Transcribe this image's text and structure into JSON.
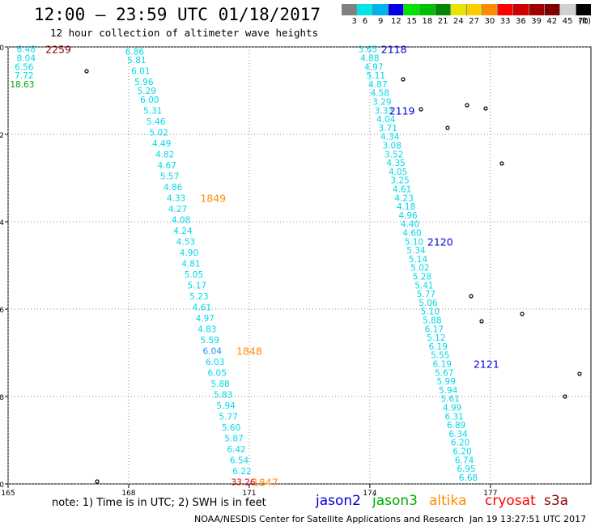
{
  "header": {
    "title": "12:00 — 23:59 UTC 01/18/2017",
    "subtitle": "12 hour collection of altimeter wave heights"
  },
  "legend": {
    "unit": "(ft)",
    "bins": [
      {
        "label": "3",
        "color": "#808080"
      },
      {
        "label": "6",
        "color": "#00e5e5"
      },
      {
        "label": "9",
        "color": "#00b2ee"
      },
      {
        "label": "12",
        "color": "#0000e5"
      },
      {
        "label": "15",
        "color": "#00e500"
      },
      {
        "label": "18",
        "color": "#00c000"
      },
      {
        "label": "21",
        "color": "#008800"
      },
      {
        "label": "24",
        "color": "#e5e500"
      },
      {
        "label": "27",
        "color": "#ffcc00"
      },
      {
        "label": "30",
        "color": "#ff8c00"
      },
      {
        "label": "33",
        "color": "#ff0000"
      },
      {
        "label": "36",
        "color": "#d00000"
      },
      {
        "label": "39",
        "color": "#a00000"
      },
      {
        "label": "42",
        "color": "#800000"
      },
      {
        "label": "45",
        "color": "#d0d0d0"
      },
      {
        "label": "70",
        "color": "#000000"
      }
    ]
  },
  "note": "note: 1) Time is in UTC; 2) SWH is in feet",
  "missions": [
    {
      "name": "jason2",
      "color": "#0000dd"
    },
    {
      "name": "jason3",
      "color": "#00aa00"
    },
    {
      "name": "altika",
      "color": "#ff8c00"
    },
    {
      "name": "cryosat",
      "color": "#ff0000"
    },
    {
      "name": "s3a",
      "color": "#8b0000"
    }
  ],
  "footer": {
    "source": "NOAA/NESDIS Center for Satellite Applications and Research",
    "timestamp": "Jan 19 13:27:51 UTC 2017"
  },
  "chart_data": {
    "type": "scatter",
    "xlim": [
      165,
      179.5
    ],
    "ylim": [
      -10,
      0
    ],
    "x_ticks": [
      "165",
      "168",
      "171",
      "174",
      "177"
    ],
    "y_ticks": [
      "0",
      "-2",
      "-4",
      "-6",
      "-8",
      "-10"
    ],
    "grid": true,
    "tracks": [
      {
        "mission": "cryosat",
        "points": [
          {
            "x": 165.45,
            "y": -0.05,
            "v": "6.48"
          },
          {
            "x": 165.45,
            "y": -0.25,
            "v": "8.04"
          },
          {
            "x": 165.4,
            "y": -0.45,
            "v": "6.56"
          },
          {
            "x": 165.4,
            "y": -0.65,
            "v": "7.72"
          },
          {
            "x": 165.35,
            "y": -0.85,
            "v": "18.63",
            "color": "#00a000"
          }
        ],
        "time_labels": [
          {
            "x": 166.25,
            "y": -0.05,
            "t": "2259",
            "color": "#8b0000"
          }
        ]
      },
      {
        "mission": "altika",
        "points": [
          {
            "x": 168.15,
            "y": -0.1,
            "v": "6.86"
          },
          {
            "x": 168.2,
            "y": -0.3,
            "v": "5.81"
          },
          {
            "x": 168.3,
            "y": -0.55,
            "v": "6.01"
          },
          {
            "x": 168.38,
            "y": -0.8,
            "v": "5.96"
          },
          {
            "x": 168.45,
            "y": -1.0,
            "v": "5.29"
          },
          {
            "x": 168.52,
            "y": -1.2,
            "v": "6.00"
          },
          {
            "x": 168.6,
            "y": -1.45,
            "v": "5.31"
          },
          {
            "x": 168.68,
            "y": -1.7,
            "v": "5.46"
          },
          {
            "x": 168.75,
            "y": -1.95,
            "v": "5.02"
          },
          {
            "x": 168.82,
            "y": -2.2,
            "v": "4.49"
          },
          {
            "x": 168.9,
            "y": -2.45,
            "v": "4.82"
          },
          {
            "x": 168.95,
            "y": -2.7,
            "v": "4.67"
          },
          {
            "x": 169.02,
            "y": -2.95,
            "v": "5.57"
          },
          {
            "x": 169.1,
            "y": -3.2,
            "v": "4.86"
          },
          {
            "x": 169.18,
            "y": -3.45,
            "v": "4.33"
          },
          {
            "x": 169.22,
            "y": -3.7,
            "v": "4.27"
          },
          {
            "x": 169.3,
            "y": -3.95,
            "v": "4.08"
          },
          {
            "x": 169.35,
            "y": -4.2,
            "v": "4.24"
          },
          {
            "x": 169.42,
            "y": -4.45,
            "v": "4.53"
          },
          {
            "x": 169.5,
            "y": -4.7,
            "v": "4.90"
          },
          {
            "x": 169.55,
            "y": -4.95,
            "v": "4.81"
          },
          {
            "x": 169.62,
            "y": -5.2,
            "v": "5.05"
          },
          {
            "x": 169.7,
            "y": -5.45,
            "v": "5.17"
          },
          {
            "x": 169.75,
            "y": -5.7,
            "v": "5.23"
          },
          {
            "x": 169.82,
            "y": -5.95,
            "v": "4.61"
          },
          {
            "x": 169.9,
            "y": -6.2,
            "v": "4.97"
          },
          {
            "x": 169.95,
            "y": -6.45,
            "v": "4.83"
          },
          {
            "x": 170.02,
            "y": -6.7,
            "v": "5.59"
          },
          {
            "x": 170.08,
            "y": -6.95,
            "v": "6.04",
            "color": "#1e90ff"
          },
          {
            "x": 170.15,
            "y": -7.2,
            "v": "6.03"
          },
          {
            "x": 170.2,
            "y": -7.45,
            "v": "6.05"
          },
          {
            "x": 170.28,
            "y": -7.7,
            "v": "5.88"
          },
          {
            "x": 170.35,
            "y": -7.95,
            "v": "5.83"
          },
          {
            "x": 170.42,
            "y": -8.2,
            "v": "5.94"
          },
          {
            "x": 170.48,
            "y": -8.45,
            "v": "5.77"
          },
          {
            "x": 170.55,
            "y": -8.7,
            "v": "5.60"
          },
          {
            "x": 170.62,
            "y": -8.95,
            "v": "5.87"
          },
          {
            "x": 170.68,
            "y": -9.2,
            "v": "6.42"
          },
          {
            "x": 170.75,
            "y": -9.45,
            "v": "6.54"
          },
          {
            "x": 170.82,
            "y": -9.7,
            "v": "6.22"
          },
          {
            "x": 170.85,
            "y": -9.95,
            "v": "33.26",
            "color": "#d00000"
          }
        ],
        "time_labels": [
          {
            "x": 170.1,
            "y": -3.45,
            "t": "1849",
            "color": "#ff8c00"
          },
          {
            "x": 171.0,
            "y": -6.95,
            "t": "1848",
            "color": "#ff8c00"
          },
          {
            "x": 171.4,
            "y": -9.95,
            "t": "1847",
            "color": "#ff8c00"
          }
        ]
      },
      {
        "mission": "jason2",
        "points": [
          {
            "x": 173.95,
            "y": -0.05,
            "v": "3.65"
          },
          {
            "x": 174.0,
            "y": -0.25,
            "v": "4.88"
          },
          {
            "x": 174.1,
            "y": -0.45,
            "v": "4.97"
          },
          {
            "x": 174.15,
            "y": -0.65,
            "v": "5.11"
          },
          {
            "x": 174.2,
            "y": -0.85,
            "v": "4.87"
          },
          {
            "x": 174.25,
            "y": -1.05,
            "v": "4.58"
          },
          {
            "x": 174.3,
            "y": -1.25,
            "v": "3.29"
          },
          {
            "x": 174.35,
            "y": -1.45,
            "v": "3.33"
          },
          {
            "x": 174.4,
            "y": -1.65,
            "v": "4.04"
          },
          {
            "x": 174.45,
            "y": -1.85,
            "v": "3.71"
          },
          {
            "x": 174.5,
            "y": -2.05,
            "v": "4.34"
          },
          {
            "x": 174.55,
            "y": -2.25,
            "v": "3.08"
          },
          {
            "x": 174.6,
            "y": -2.45,
            "v": "3.52"
          },
          {
            "x": 174.65,
            "y": -2.65,
            "v": "4.35"
          },
          {
            "x": 174.7,
            "y": -2.85,
            "v": "4.05"
          },
          {
            "x": 174.75,
            "y": -3.05,
            "v": "3.25"
          },
          {
            "x": 174.8,
            "y": -3.25,
            "v": "4.61"
          },
          {
            "x": 174.85,
            "y": -3.45,
            "v": "4.23"
          },
          {
            "x": 174.9,
            "y": -3.65,
            "v": "4.18"
          },
          {
            "x": 174.95,
            "y": -3.85,
            "v": "4.96"
          },
          {
            "x": 175.0,
            "y": -4.05,
            "v": "4.40"
          },
          {
            "x": 175.05,
            "y": -4.25,
            "v": "4.60"
          },
          {
            "x": 175.1,
            "y": -4.45,
            "v": "5.10"
          },
          {
            "x": 175.15,
            "y": -4.65,
            "v": "5.34"
          },
          {
            "x": 175.2,
            "y": -4.85,
            "v": "5.14"
          },
          {
            "x": 175.25,
            "y": -5.05,
            "v": "5.02"
          },
          {
            "x": 175.3,
            "y": -5.25,
            "v": "5.28"
          },
          {
            "x": 175.35,
            "y": -5.45,
            "v": "5.41"
          },
          {
            "x": 175.4,
            "y": -5.65,
            "v": "5.77"
          },
          {
            "x": 175.45,
            "y": -5.85,
            "v": "5.06"
          },
          {
            "x": 175.5,
            "y": -6.05,
            "v": "5.10"
          },
          {
            "x": 175.55,
            "y": -6.25,
            "v": "5.88"
          },
          {
            "x": 175.6,
            "y": -6.45,
            "v": "6.17"
          },
          {
            "x": 175.65,
            "y": -6.65,
            "v": "5.12"
          },
          {
            "x": 175.7,
            "y": -6.85,
            "v": "6.19"
          },
          {
            "x": 175.75,
            "y": -7.05,
            "v": "5.55"
          },
          {
            "x": 175.8,
            "y": -7.25,
            "v": "6.19"
          },
          {
            "x": 175.85,
            "y": -7.45,
            "v": "5.67"
          },
          {
            "x": 175.9,
            "y": -7.65,
            "v": "5.99"
          },
          {
            "x": 175.95,
            "y": -7.85,
            "v": "5.94"
          },
          {
            "x": 176.0,
            "y": -8.05,
            "v": "5.61"
          },
          {
            "x": 176.05,
            "y": -8.25,
            "v": "4.99"
          },
          {
            "x": 176.1,
            "y": -8.45,
            "v": "6.31"
          },
          {
            "x": 176.15,
            "y": -8.65,
            "v": "6.89"
          },
          {
            "x": 176.2,
            "y": -8.85,
            "v": "6.34"
          },
          {
            "x": 176.25,
            "y": -9.05,
            "v": "6.20"
          },
          {
            "x": 176.3,
            "y": -9.25,
            "v": "6.20"
          },
          {
            "x": 176.35,
            "y": -9.45,
            "v": "6.74"
          },
          {
            "x": 176.4,
            "y": -9.65,
            "v": "6.95"
          },
          {
            "x": 176.45,
            "y": -9.85,
            "v": "6.68"
          }
        ],
        "time_labels": [
          {
            "x": 174.6,
            "y": -0.05,
            "t": "2118",
            "color": "#0000dd"
          },
          {
            "x": 174.8,
            "y": -1.45,
            "t": "2119",
            "color": "#0000dd"
          },
          {
            "x": 175.75,
            "y": -4.45,
            "t": "2120",
            "color": "#0000dd"
          },
          {
            "x": 176.9,
            "y": -7.25,
            "t": "2121",
            "color": "#0000dd"
          }
        ]
      }
    ]
  }
}
